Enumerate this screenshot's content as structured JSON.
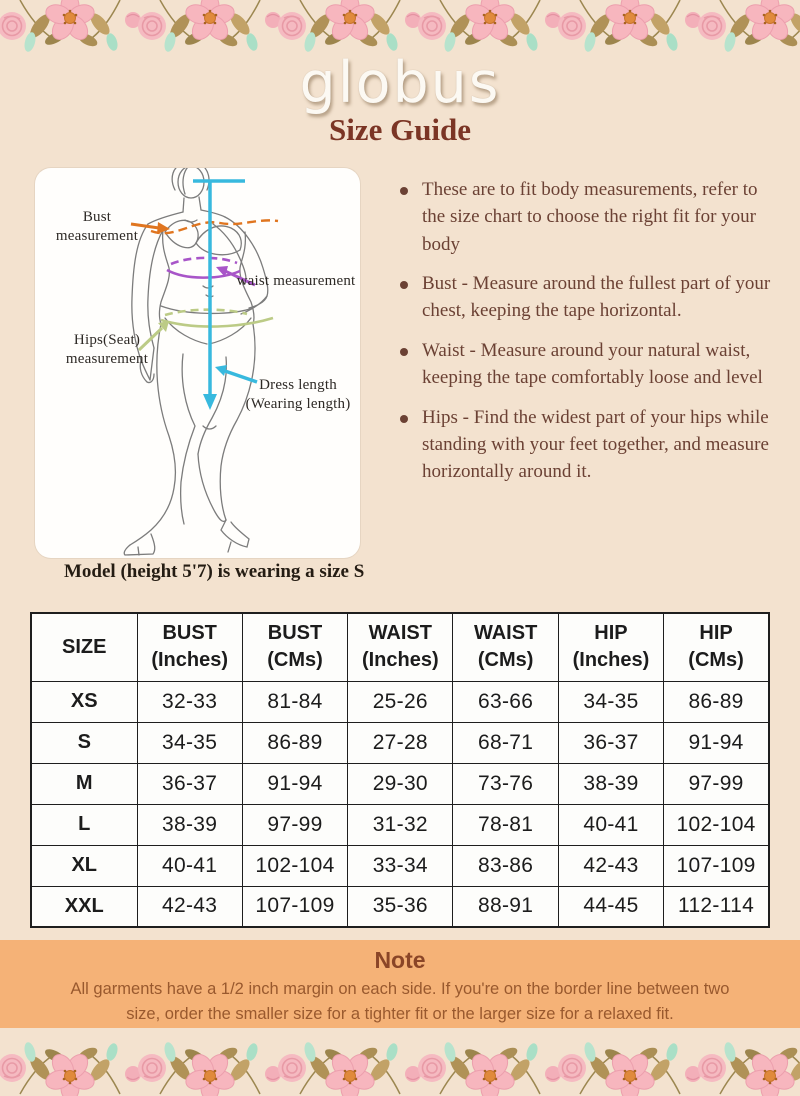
{
  "header": {
    "logo": "globus",
    "title": "Size Guide"
  },
  "diagram": {
    "labels": {
      "bust": "Bust measurement",
      "waist": "waist measurement",
      "hips": "Hips(Seat) measurement",
      "dress_length": "Dress length (Wearing length)"
    },
    "caption": "Model (height 5'7) is wearing a size S",
    "colors": {
      "bust_line": "#e0751f",
      "waist_line": "#a855c8",
      "hips_line": "#bccb86",
      "length_line": "#38b9de"
    }
  },
  "instructions": [
    "These are to fit body measurements, refer to the size chart to choose the right fit for your body",
    "Bust - Measure around the fullest part of your chest, keeping the tape horizontal.",
    "Waist - Measure around your natural waist, keeping the tape comfortably loose and level",
    "Hips - Find the widest part of your hips while standing with your feet together, and measure horizontally around it."
  ],
  "size_table": {
    "headers": [
      {
        "label": "SIZE",
        "sub": ""
      },
      {
        "label": "BUST",
        "sub": "(Inches)"
      },
      {
        "label": "BUST",
        "sub": "(CMs)"
      },
      {
        "label": "WAIST",
        "sub": "(Inches)"
      },
      {
        "label": "WAIST",
        "sub": "(CMs)"
      },
      {
        "label": "HIP",
        "sub": "(Inches)"
      },
      {
        "label": "HIP",
        "sub": "(CMs)"
      }
    ],
    "rows": [
      {
        "size": "XS",
        "values": [
          "32-33",
          "81-84",
          "25-26",
          "63-66",
          "34-35",
          "86-89"
        ]
      },
      {
        "size": "S",
        "values": [
          "34-35",
          "86-89",
          "27-28",
          "68-71",
          "36-37",
          "91-94"
        ]
      },
      {
        "size": "M",
        "values": [
          "36-37",
          "91-94",
          "29-30",
          "73-76",
          "38-39",
          "97-99"
        ]
      },
      {
        "size": "L",
        "values": [
          "38-39",
          "97-99",
          "31-32",
          "78-81",
          "40-41",
          "102-104"
        ]
      },
      {
        "size": "XL",
        "values": [
          "40-41",
          "102-104",
          "33-34",
          "83-86",
          "42-43",
          "107-109"
        ]
      },
      {
        "size": "XXL",
        "values": [
          "42-43",
          "107-109",
          "35-36",
          "88-91",
          "44-45",
          "112-114"
        ]
      }
    ]
  },
  "note": {
    "title": "Note",
    "text": "All garments have a 1/2 inch margin on each side. If you're on the border line between two size, order the smaller size for a tighter fit or the larger size for a relaxed fit."
  },
  "theme": {
    "background": "#f3e2cf",
    "note_background": "#f5b277",
    "title_color": "#7b3525",
    "instruction_text_color": "#6b4134"
  }
}
